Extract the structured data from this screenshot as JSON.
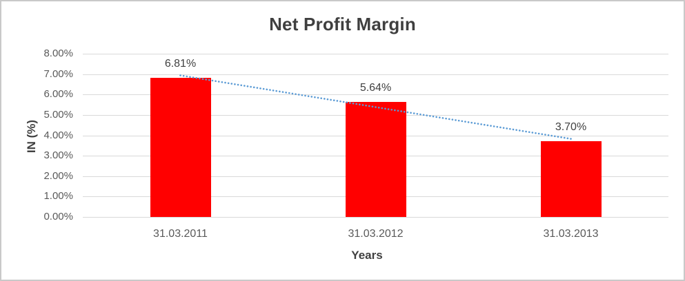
{
  "chart": {
    "title": "Net Profit Margin",
    "ylabel": "IN (%)",
    "xlabel": "Years"
  },
  "chart_data": {
    "type": "bar",
    "title": "Net Profit Margin",
    "xlabel": "Years",
    "ylabel": "IN (%)",
    "categories": [
      "31.03.2011",
      "31.03.2012",
      "31.03.2013"
    ],
    "values": [
      6.81,
      5.64,
      3.7
    ],
    "data_labels": [
      "6.81%",
      "5.64%",
      "3.70%"
    ],
    "yticks": [
      "8.00%",
      "7.00%",
      "6.00%",
      "5.00%",
      "4.00%",
      "3.00%",
      "2.00%",
      "1.00%",
      "0.00%"
    ],
    "ylim": [
      0,
      8
    ],
    "ytick_step": 1,
    "grid": true,
    "legend": "none",
    "trendline": {
      "type": "linear",
      "style": "dotted"
    }
  },
  "colors": {
    "bar": "#ff0000",
    "trendline": "#5b9bd5",
    "gridline": "#d9d9d9",
    "title_text": "#3f3f3f",
    "tick_text": "#595959",
    "frame_border": "#c9c9c9"
  }
}
